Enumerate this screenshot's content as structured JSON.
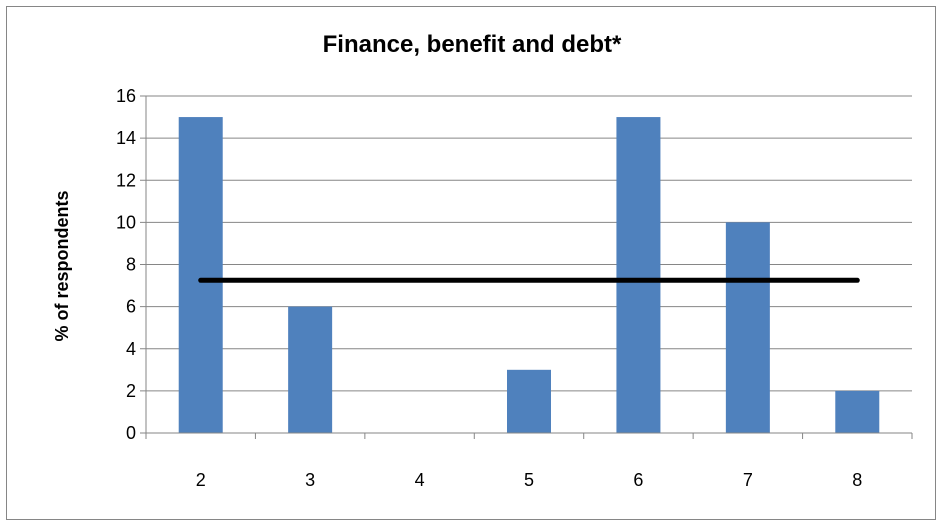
{
  "chart_data": {
    "type": "bar",
    "title": "Finance, benefit and debt*",
    "xlabel": "",
    "ylabel": "% of respondents",
    "categories": [
      "2",
      "3",
      "4",
      "5",
      "6",
      "7",
      "8"
    ],
    "series": [
      {
        "values": [
          15,
          6,
          0,
          3,
          15,
          10,
          2
        ]
      }
    ],
    "reference_line": {
      "value": 7.25
    },
    "ylim": [
      0,
      16
    ],
    "yticks": [
      0,
      2,
      4,
      6,
      8,
      10,
      12,
      14,
      16
    ],
    "grid": true,
    "legend": "none",
    "colors": {
      "bar": "#4F81BD",
      "line": "#000000",
      "grid": "#868686"
    }
  }
}
